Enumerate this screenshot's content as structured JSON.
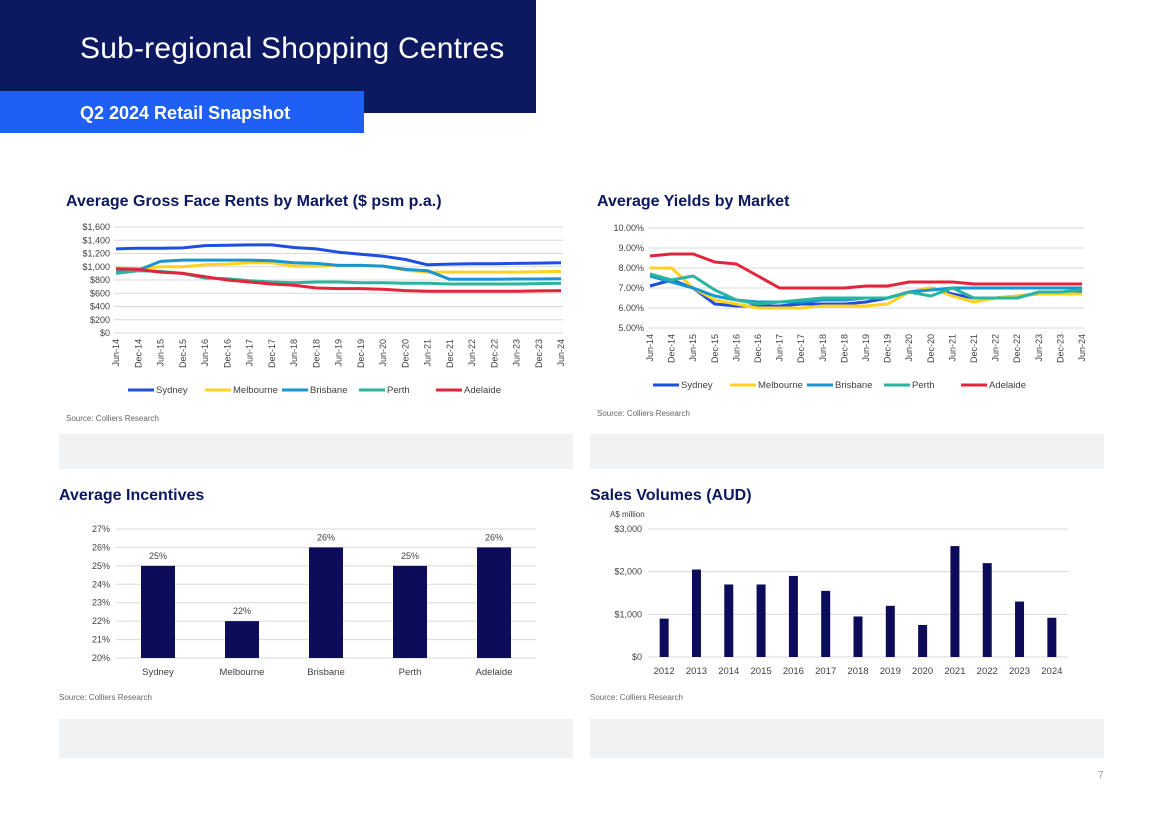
{
  "header": {
    "title": "Sub-regional Shopping Centres",
    "subtitle": "Q2 2024 Retail Snapshot"
  },
  "page_number": "7",
  "source_note": "Source: Colliers Research",
  "colors": {
    "navy": "#0c1860",
    "blue": "#1f5ff3",
    "sydney": "#1f4fe0",
    "melbourne": "#ffd21f",
    "brisbane": "#1896d3",
    "perth": "#2bb5a0",
    "adelaide": "#e3243b"
  },
  "periods": [
    "Jun-14",
    "Dec-14",
    "Jun-15",
    "Dec-15",
    "Jun-16",
    "Dec-16",
    "Jun-17",
    "Dec-17",
    "Jun-18",
    "Dec-18",
    "Jun-19",
    "Dec-19",
    "Jun-20",
    "Dec-20",
    "Jun-21",
    "Dec-21",
    "Jun-22",
    "Dec-22",
    "Jun-23",
    "Dec-23",
    "Jun-24"
  ],
  "chart_data": [
    {
      "id": "rents",
      "type": "line",
      "title": "Average Gross Face Rents by Market ($ psm p.a.)",
      "ylim": [
        0,
        1600
      ],
      "yticks": [
        "$0",
        "$200",
        "$400",
        "$600",
        "$800",
        "$1,000",
        "$1,200",
        "$1,400",
        "$1,600"
      ],
      "x": [
        "Jun-14",
        "Dec-14",
        "Jun-15",
        "Dec-15",
        "Jun-16",
        "Dec-16",
        "Jun-17",
        "Dec-17",
        "Jun-18",
        "Dec-18",
        "Jun-19",
        "Dec-19",
        "Jun-20",
        "Dec-20",
        "Jun-21",
        "Dec-21",
        "Jun-22",
        "Dec-22",
        "Jun-23",
        "Dec-23",
        "Jun-24"
      ],
      "legend_position": "bottom",
      "series": [
        {
          "name": "Sydney",
          "color": "#1f4fe0",
          "values": [
            1270,
            1280,
            1280,
            1285,
            1320,
            1325,
            1330,
            1330,
            1290,
            1270,
            1220,
            1190,
            1160,
            1110,
            1030,
            1040,
            1045,
            1045,
            1050,
            1055,
            1060
          ]
        },
        {
          "name": "Melbourne",
          "color": "#ffd21f",
          "values": [
            980,
            970,
            1000,
            1000,
            1030,
            1040,
            1060,
            1060,
            1010,
            1010,
            1020,
            1020,
            1010,
            950,
            920,
            920,
            920,
            920,
            920,
            925,
            930
          ]
        },
        {
          "name": "Brisbane",
          "color": "#1896d3",
          "values": [
            920,
            950,
            1080,
            1100,
            1100,
            1100,
            1100,
            1090,
            1060,
            1050,
            1020,
            1020,
            1010,
            960,
            940,
            810,
            810,
            810,
            815,
            815,
            820
          ]
        },
        {
          "name": "Perth",
          "color": "#2bb5a0",
          "values": [
            900,
            940,
            930,
            900,
            830,
            820,
            790,
            770,
            760,
            770,
            770,
            760,
            760,
            750,
            750,
            740,
            740,
            740,
            740,
            745,
            750
          ]
        },
        {
          "name": "Adelaide",
          "color": "#e3243b",
          "values": [
            970,
            960,
            920,
            900,
            850,
            800,
            770,
            740,
            720,
            680,
            670,
            670,
            660,
            640,
            630,
            630,
            630,
            630,
            630,
            635,
            640
          ]
        }
      ]
    },
    {
      "id": "yields",
      "type": "line",
      "title": "Average Yields by Market",
      "ylim": [
        5,
        10
      ],
      "yticks": [
        "5.00%",
        "6.00%",
        "7.00%",
        "8.00%",
        "9.00%",
        "10.00%"
      ],
      "x": [
        "Jun-14",
        "Dec-14",
        "Jun-15",
        "Dec-15",
        "Jun-16",
        "Dec-16",
        "Jun-17",
        "Dec-17",
        "Jun-18",
        "Dec-18",
        "Jun-19",
        "Dec-19",
        "Jun-20",
        "Dec-20",
        "Jun-21",
        "Dec-21",
        "Jun-22",
        "Dec-22",
        "Jun-23",
        "Dec-23",
        "Jun-24"
      ],
      "legend_position": "bottom",
      "series": [
        {
          "name": "Sydney",
          "color": "#1f4fe0",
          "values": [
            7.1,
            7.4,
            7.0,
            6.2,
            6.1,
            6.1,
            6.1,
            6.2,
            6.2,
            6.2,
            6.3,
            6.5,
            6.8,
            7.0,
            6.7,
            6.5,
            6.5,
            6.6,
            6.7,
            6.7,
            6.8
          ]
        },
        {
          "name": "Melbourne",
          "color": "#ffd21f",
          "values": [
            8.0,
            8.0,
            7.0,
            6.4,
            6.2,
            6.0,
            6.0,
            6.0,
            6.1,
            6.1,
            6.1,
            6.2,
            6.8,
            7.0,
            6.6,
            6.3,
            6.5,
            6.6,
            6.7,
            6.7,
            6.7
          ]
        },
        {
          "name": "Brisbane",
          "color": "#1896d3",
          "values": [
            7.6,
            7.3,
            7.0,
            6.6,
            6.4,
            6.3,
            6.3,
            6.3,
            6.4,
            6.4,
            6.5,
            6.5,
            6.8,
            6.9,
            7.0,
            7.0,
            7.0,
            7.0,
            7.0,
            7.0,
            7.0
          ]
        },
        {
          "name": "Perth",
          "color": "#2bb5a0",
          "values": [
            7.7,
            7.4,
            7.6,
            6.9,
            6.4,
            6.2,
            6.3,
            6.4,
            6.5,
            6.5,
            6.5,
            6.5,
            6.8,
            6.6,
            7.0,
            6.5,
            6.5,
            6.5,
            6.8,
            6.8,
            6.9
          ]
        },
        {
          "name": "Adelaide",
          "color": "#e3243b",
          "values": [
            8.6,
            8.7,
            8.7,
            8.3,
            8.2,
            7.6,
            7.0,
            7.0,
            7.0,
            7.0,
            7.1,
            7.1,
            7.3,
            7.3,
            7.3,
            7.2,
            7.2,
            7.2,
            7.2,
            7.2,
            7.2
          ]
        }
      ]
    },
    {
      "id": "incentives",
      "type": "bar",
      "title": "Average Incentives",
      "categories": [
        "Sydney",
        "Melbourne",
        "Brisbane",
        "Perth",
        "Adelaide"
      ],
      "values": [
        25,
        22,
        26,
        25,
        26
      ],
      "value_labels": [
        "25%",
        "22%",
        "26%",
        "25%",
        "26%"
      ],
      "ylim": [
        20,
        27
      ],
      "yticks": [
        "20%",
        "21%",
        "22%",
        "23%",
        "24%",
        "25%",
        "26%",
        "27%"
      ],
      "color": "#0c0c5a",
      "grid": true
    },
    {
      "id": "volumes",
      "type": "bar",
      "title": "Sales Volumes (AUD)",
      "ylabel": "A$ million",
      "categories": [
        "2012",
        "2013",
        "2014",
        "2015",
        "2016",
        "2017",
        "2018",
        "2019",
        "2020",
        "2021",
        "2022",
        "2023",
        "2024"
      ],
      "values": [
        900,
        2050,
        1700,
        1700,
        1900,
        1550,
        950,
        1200,
        750,
        2600,
        2200,
        1300,
        920
      ],
      "ylim": [
        0,
        3000
      ],
      "yticks": [
        "$0",
        "$1,000",
        "$2,000",
        "$3,000"
      ],
      "color": "#0c0c5a",
      "grid": true
    }
  ]
}
